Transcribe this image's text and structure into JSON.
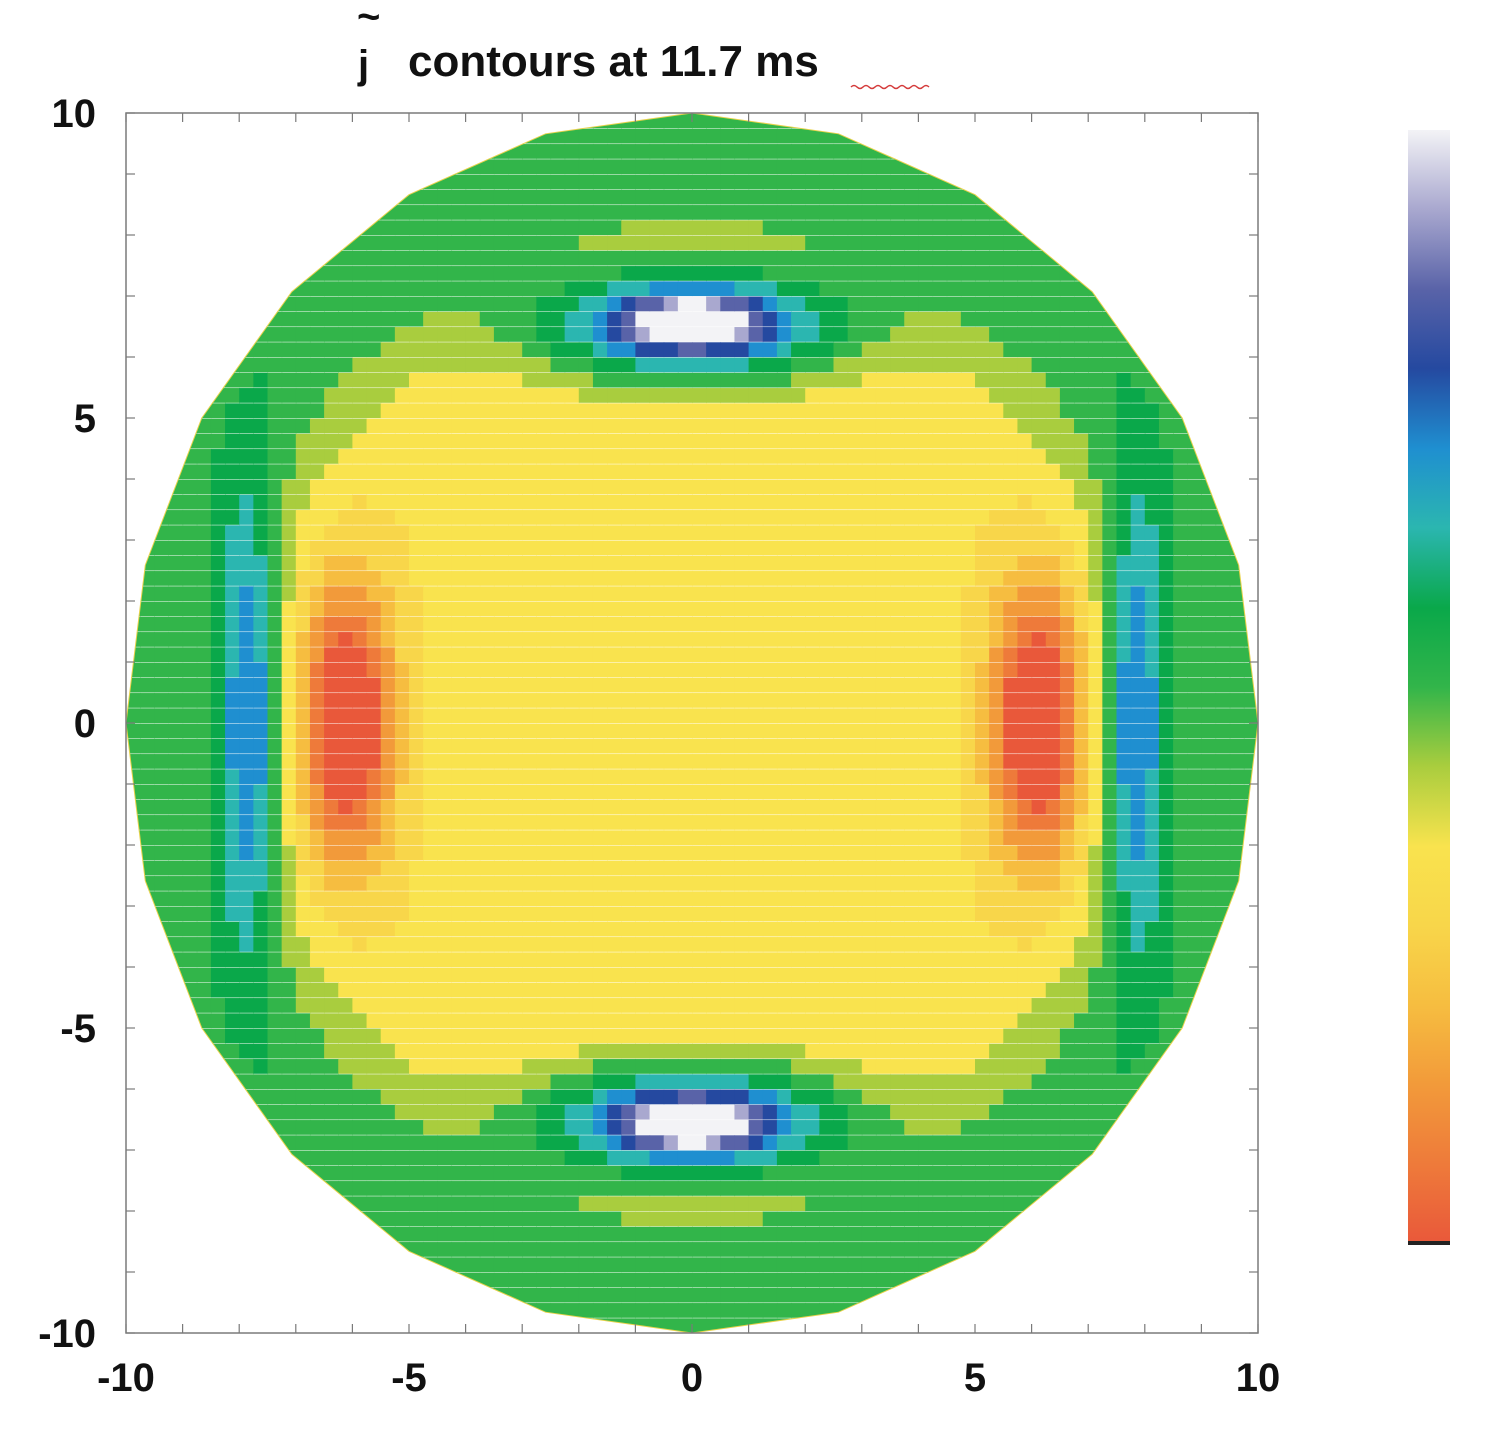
{
  "chart_data": {
    "type": "heatmap",
    "title": {
      "symbol": "j",
      "accent": "~",
      "text": "contours at 11.7 ",
      "unit": "ms"
    },
    "xlabel": "",
    "ylabel": "",
    "xlim": [
      -10,
      10
    ],
    "ylim": [
      -10,
      10
    ],
    "x_ticks": [
      -10,
      -5,
      0,
      5,
      10
    ],
    "y_ticks": [
      -10,
      -5,
      0,
      5,
      10
    ],
    "x_tick_labels": [
      "-10",
      "-5",
      "0",
      "5",
      "10"
    ],
    "y_tick_labels": [
      "-10",
      "-5",
      "0",
      "5",
      "10"
    ],
    "minor_tick_step": 1,
    "grid": false,
    "domain_shape": "polygon, 24 sides",
    "domain_radius": 10,
    "background_level": "#f9e34e",
    "colorbar": {
      "orientation": "vertical",
      "placement": "right",
      "labels": [],
      "colors_top_to_bottom": [
        "#f3f3f6",
        "#a9a8cf",
        "#5963a8",
        "#2549a0",
        "#1f8fd0",
        "#2bb6b0",
        "#0aa84a",
        "#32b54a",
        "#a9cd3e",
        "#f9e34e",
        "#f8d64a",
        "#f6bd40",
        "#f29a3a",
        "#ee7a3a",
        "#e9583a",
        "#333333"
      ]
    },
    "features": [
      {
        "name": "blue well top",
        "x": 0,
        "y": 6.6,
        "level": "minimum"
      },
      {
        "name": "blue well bottom",
        "x": 0,
        "y": -6.6,
        "level": "minimum"
      },
      {
        "name": "red lobe left",
        "x": -6.0,
        "y": 0,
        "level": "maximum"
      },
      {
        "name": "red lobe right",
        "x": 6.0,
        "y": 0,
        "level": "maximum"
      },
      {
        "name": "green band left",
        "x": -7.8,
        "y": 0,
        "level": "low"
      },
      {
        "name": "green band right",
        "x": 7.8,
        "y": 0,
        "level": "low"
      }
    ]
  }
}
